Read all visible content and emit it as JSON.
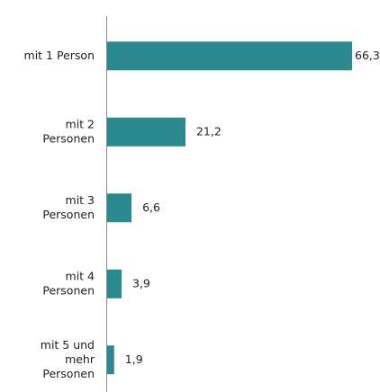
{
  "chart_data": {
    "type": "bar",
    "orientation": "horizontal",
    "categories": [
      [
        "mit 1 Person"
      ],
      [
        "mit 2",
        "Personen"
      ],
      [
        "mit 3",
        "Personen"
      ],
      [
        "mit 4",
        "Personen"
      ],
      [
        "mit 5 und",
        "mehr",
        "Personen"
      ]
    ],
    "values": [
      66.3,
      21.2,
      6.6,
      3.9,
      1.9
    ],
    "value_labels": [
      "66,3",
      "21,2",
      "6,6",
      "3,9",
      "1,9"
    ],
    "color": "#2b8a90"
  }
}
